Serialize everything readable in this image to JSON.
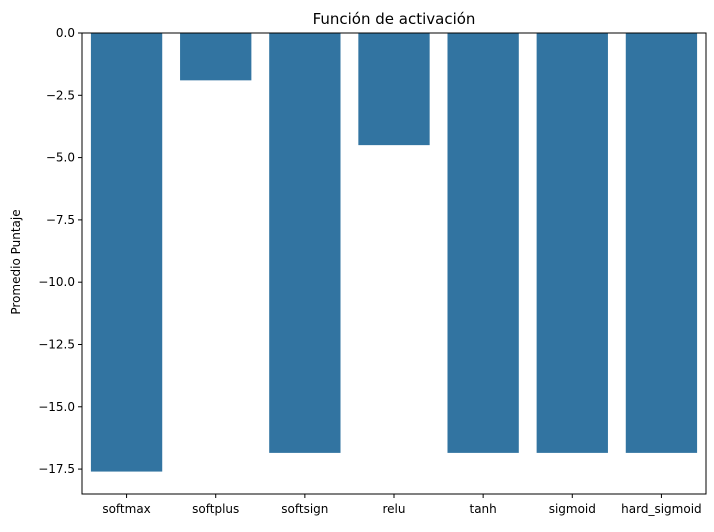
{
  "chart_data": {
    "type": "bar",
    "title": "Función de activación",
    "xlabel": "",
    "ylabel": "Promedio Puntaje",
    "categories": [
      "softmax",
      "softplus",
      "softsign",
      "relu",
      "tanh",
      "sigmoid",
      "hard_sigmoid"
    ],
    "values": [
      -17.6,
      -1.9,
      -16.85,
      -4.5,
      -16.85,
      -16.85,
      -16.85
    ],
    "ylim": [
      -18.5,
      0
    ],
    "yticks": [
      0.0,
      -2.5,
      -5.0,
      -7.5,
      -10.0,
      -12.5,
      -15.0,
      -17.5
    ],
    "ytick_labels": [
      "0.0",
      "−2.5",
      "−5.0",
      "−7.5",
      "−10.0",
      "−12.5",
      "−15.0",
      "−17.5"
    ],
    "grid": false,
    "bar_color": "#3274a1"
  }
}
